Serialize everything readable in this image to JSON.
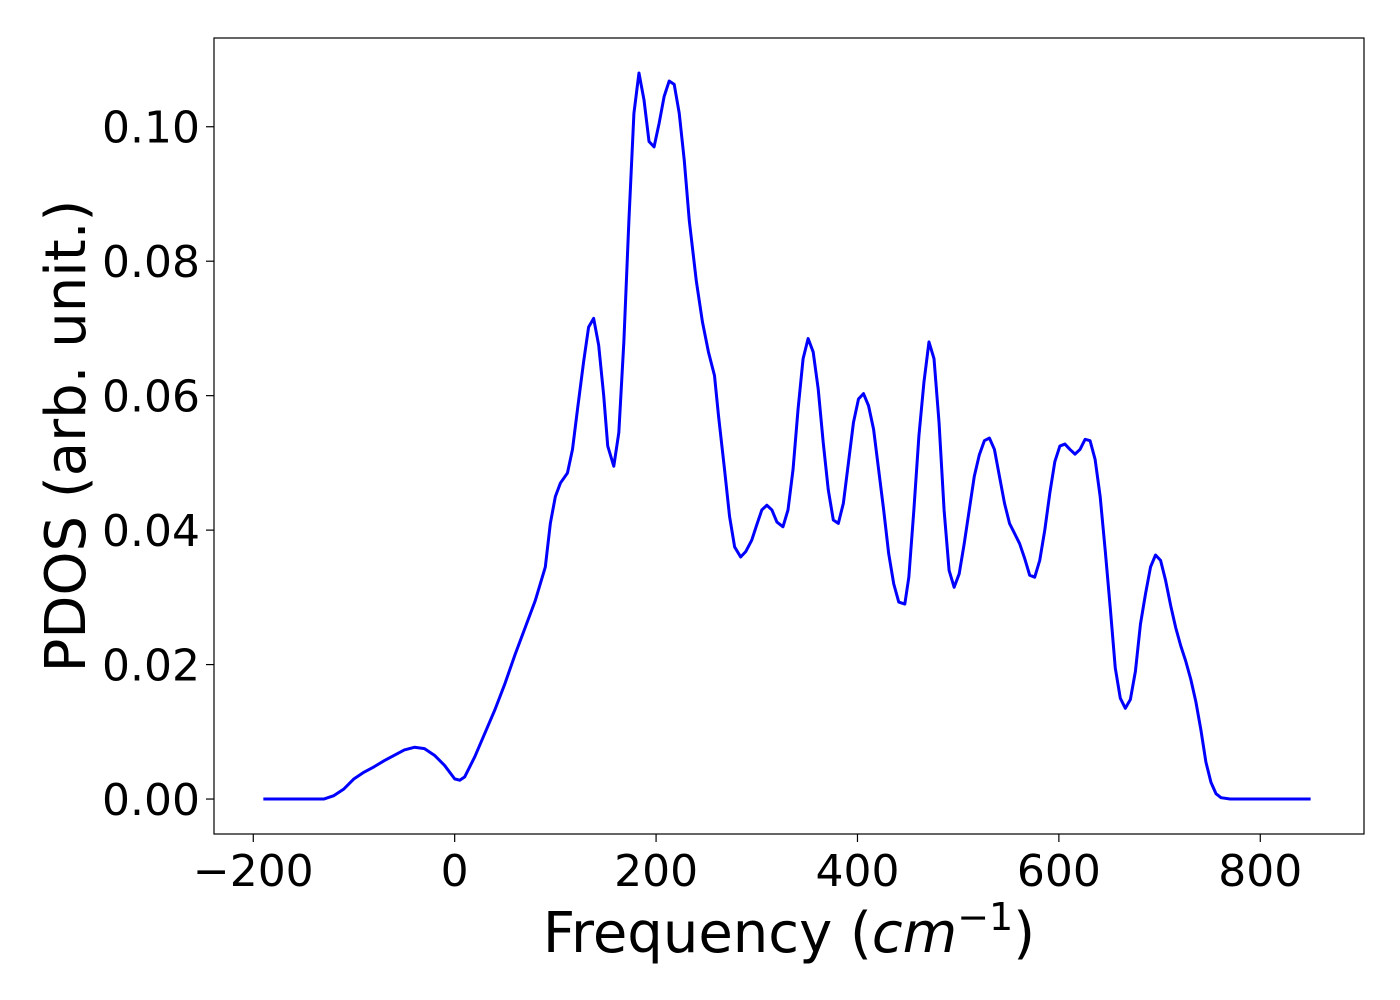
{
  "chart_data": {
    "type": "line",
    "xlabel_parts": [
      "Frequency (",
      "cm",
      "−1",
      ")"
    ],
    "ylabel": "PDOS (arb. unit.)",
    "xlim": [
      -239,
      903
    ],
    "ylim": [
      -0.0052,
      0.1132
    ],
    "xticks": [
      {
        "value": -200,
        "label": "−200"
      },
      0,
      200,
      400,
      600,
      800
    ],
    "yticks": [
      {
        "value": 0,
        "label": "0.00"
      },
      {
        "value": 0.02,
        "label": "0.02"
      },
      {
        "value": 0.04,
        "label": "0.04"
      },
      {
        "value": 0.06,
        "label": "0.06"
      },
      {
        "value": 0.08,
        "label": "0.08"
      },
      {
        "value": 0.1,
        "label": "0.10"
      }
    ],
    "grid": false,
    "series": [
      {
        "color": "#0000ff",
        "x": [
          -190,
          -130,
          -120,
          -110,
          -100,
          -90,
          -80,
          -70,
          -60,
          -50,
          -40,
          -30,
          -20,
          -10,
          0,
          5,
          10,
          20,
          30,
          40,
          50,
          60,
          70,
          80,
          90,
          95,
          100,
          105,
          112,
          117,
          122,
          128,
          133,
          138,
          143,
          148,
          152,
          158,
          163,
          168,
          173,
          178,
          183,
          188,
          193,
          198,
          203,
          208,
          213,
          218,
          223,
          228,
          233,
          240,
          246,
          252,
          258,
          262,
          268,
          273,
          278,
          284,
          289,
          295,
          300,
          305,
          310,
          315,
          320,
          326,
          331,
          336,
          341,
          346,
          351,
          356,
          361,
          366,
          371,
          376,
          381,
          386,
          391,
          396,
          401,
          406,
          411,
          416,
          421,
          426,
          431,
          436,
          441,
          447,
          451,
          456,
          461,
          466,
          471,
          476,
          481,
          486,
          491,
          496,
          501,
          506,
          511,
          516,
          521,
          526,
          531,
          536,
          541,
          546,
          551,
          556,
          561,
          566,
          571,
          576,
          581,
          586,
          591,
          596,
          601,
          606,
          611,
          616,
          621,
          626,
          631,
          636,
          641,
          646,
          651,
          656,
          661,
          666,
          671,
          676,
          681,
          686,
          691,
          696,
          701,
          706,
          711,
          716,
          721,
          726,
          731,
          736,
          741,
          746,
          751,
          756,
          761,
          770,
          850
        ],
        "values": [
          0,
          0,
          0.0005,
          0.0015,
          0.003,
          0.004,
          0.0048,
          0.0057,
          0.0065,
          0.0073,
          0.0077,
          0.0075,
          0.0065,
          0.005,
          0.003,
          0.0028,
          0.0033,
          0.0063,
          0.0098,
          0.0133,
          0.0172,
          0.0215,
          0.0255,
          0.0295,
          0.0345,
          0.041,
          0.045,
          0.047,
          0.0485,
          0.052,
          0.058,
          0.065,
          0.0702,
          0.0715,
          0.0675,
          0.06,
          0.0525,
          0.0495,
          0.0545,
          0.068,
          0.086,
          0.102,
          0.108,
          0.104,
          0.0978,
          0.097,
          0.1005,
          0.1045,
          0.1068,
          0.1063,
          0.102,
          0.095,
          0.086,
          0.077,
          0.071,
          0.0665,
          0.063,
          0.057,
          0.049,
          0.042,
          0.0375,
          0.036,
          0.0368,
          0.0385,
          0.0408,
          0.043,
          0.0437,
          0.043,
          0.0412,
          0.0405,
          0.043,
          0.049,
          0.058,
          0.0655,
          0.0685,
          0.0665,
          0.061,
          0.053,
          0.046,
          0.0415,
          0.041,
          0.044,
          0.05,
          0.056,
          0.0595,
          0.0603,
          0.0585,
          0.055,
          0.049,
          0.043,
          0.0365,
          0.032,
          0.0293,
          0.029,
          0.033,
          0.043,
          0.054,
          0.062,
          0.068,
          0.0655,
          0.056,
          0.043,
          0.034,
          0.0315,
          0.0335,
          0.038,
          0.043,
          0.048,
          0.0512,
          0.0533,
          0.0537,
          0.052,
          0.048,
          0.044,
          0.041,
          0.0395,
          0.038,
          0.0358,
          0.0333,
          0.033,
          0.0355,
          0.04,
          0.0455,
          0.0502,
          0.0525,
          0.0528,
          0.052,
          0.0513,
          0.052,
          0.0535,
          0.0533,
          0.0505,
          0.045,
          0.037,
          0.0285,
          0.0195,
          0.015,
          0.0135,
          0.0148,
          0.019,
          0.026,
          0.0305,
          0.0345,
          0.0363,
          0.0355,
          0.0325,
          0.0288,
          0.0255,
          0.0228,
          0.0205,
          0.0178,
          0.0145,
          0.0103,
          0.0055,
          0.0025,
          0.0008,
          0.0002,
          0,
          0
        ]
      }
    ]
  }
}
